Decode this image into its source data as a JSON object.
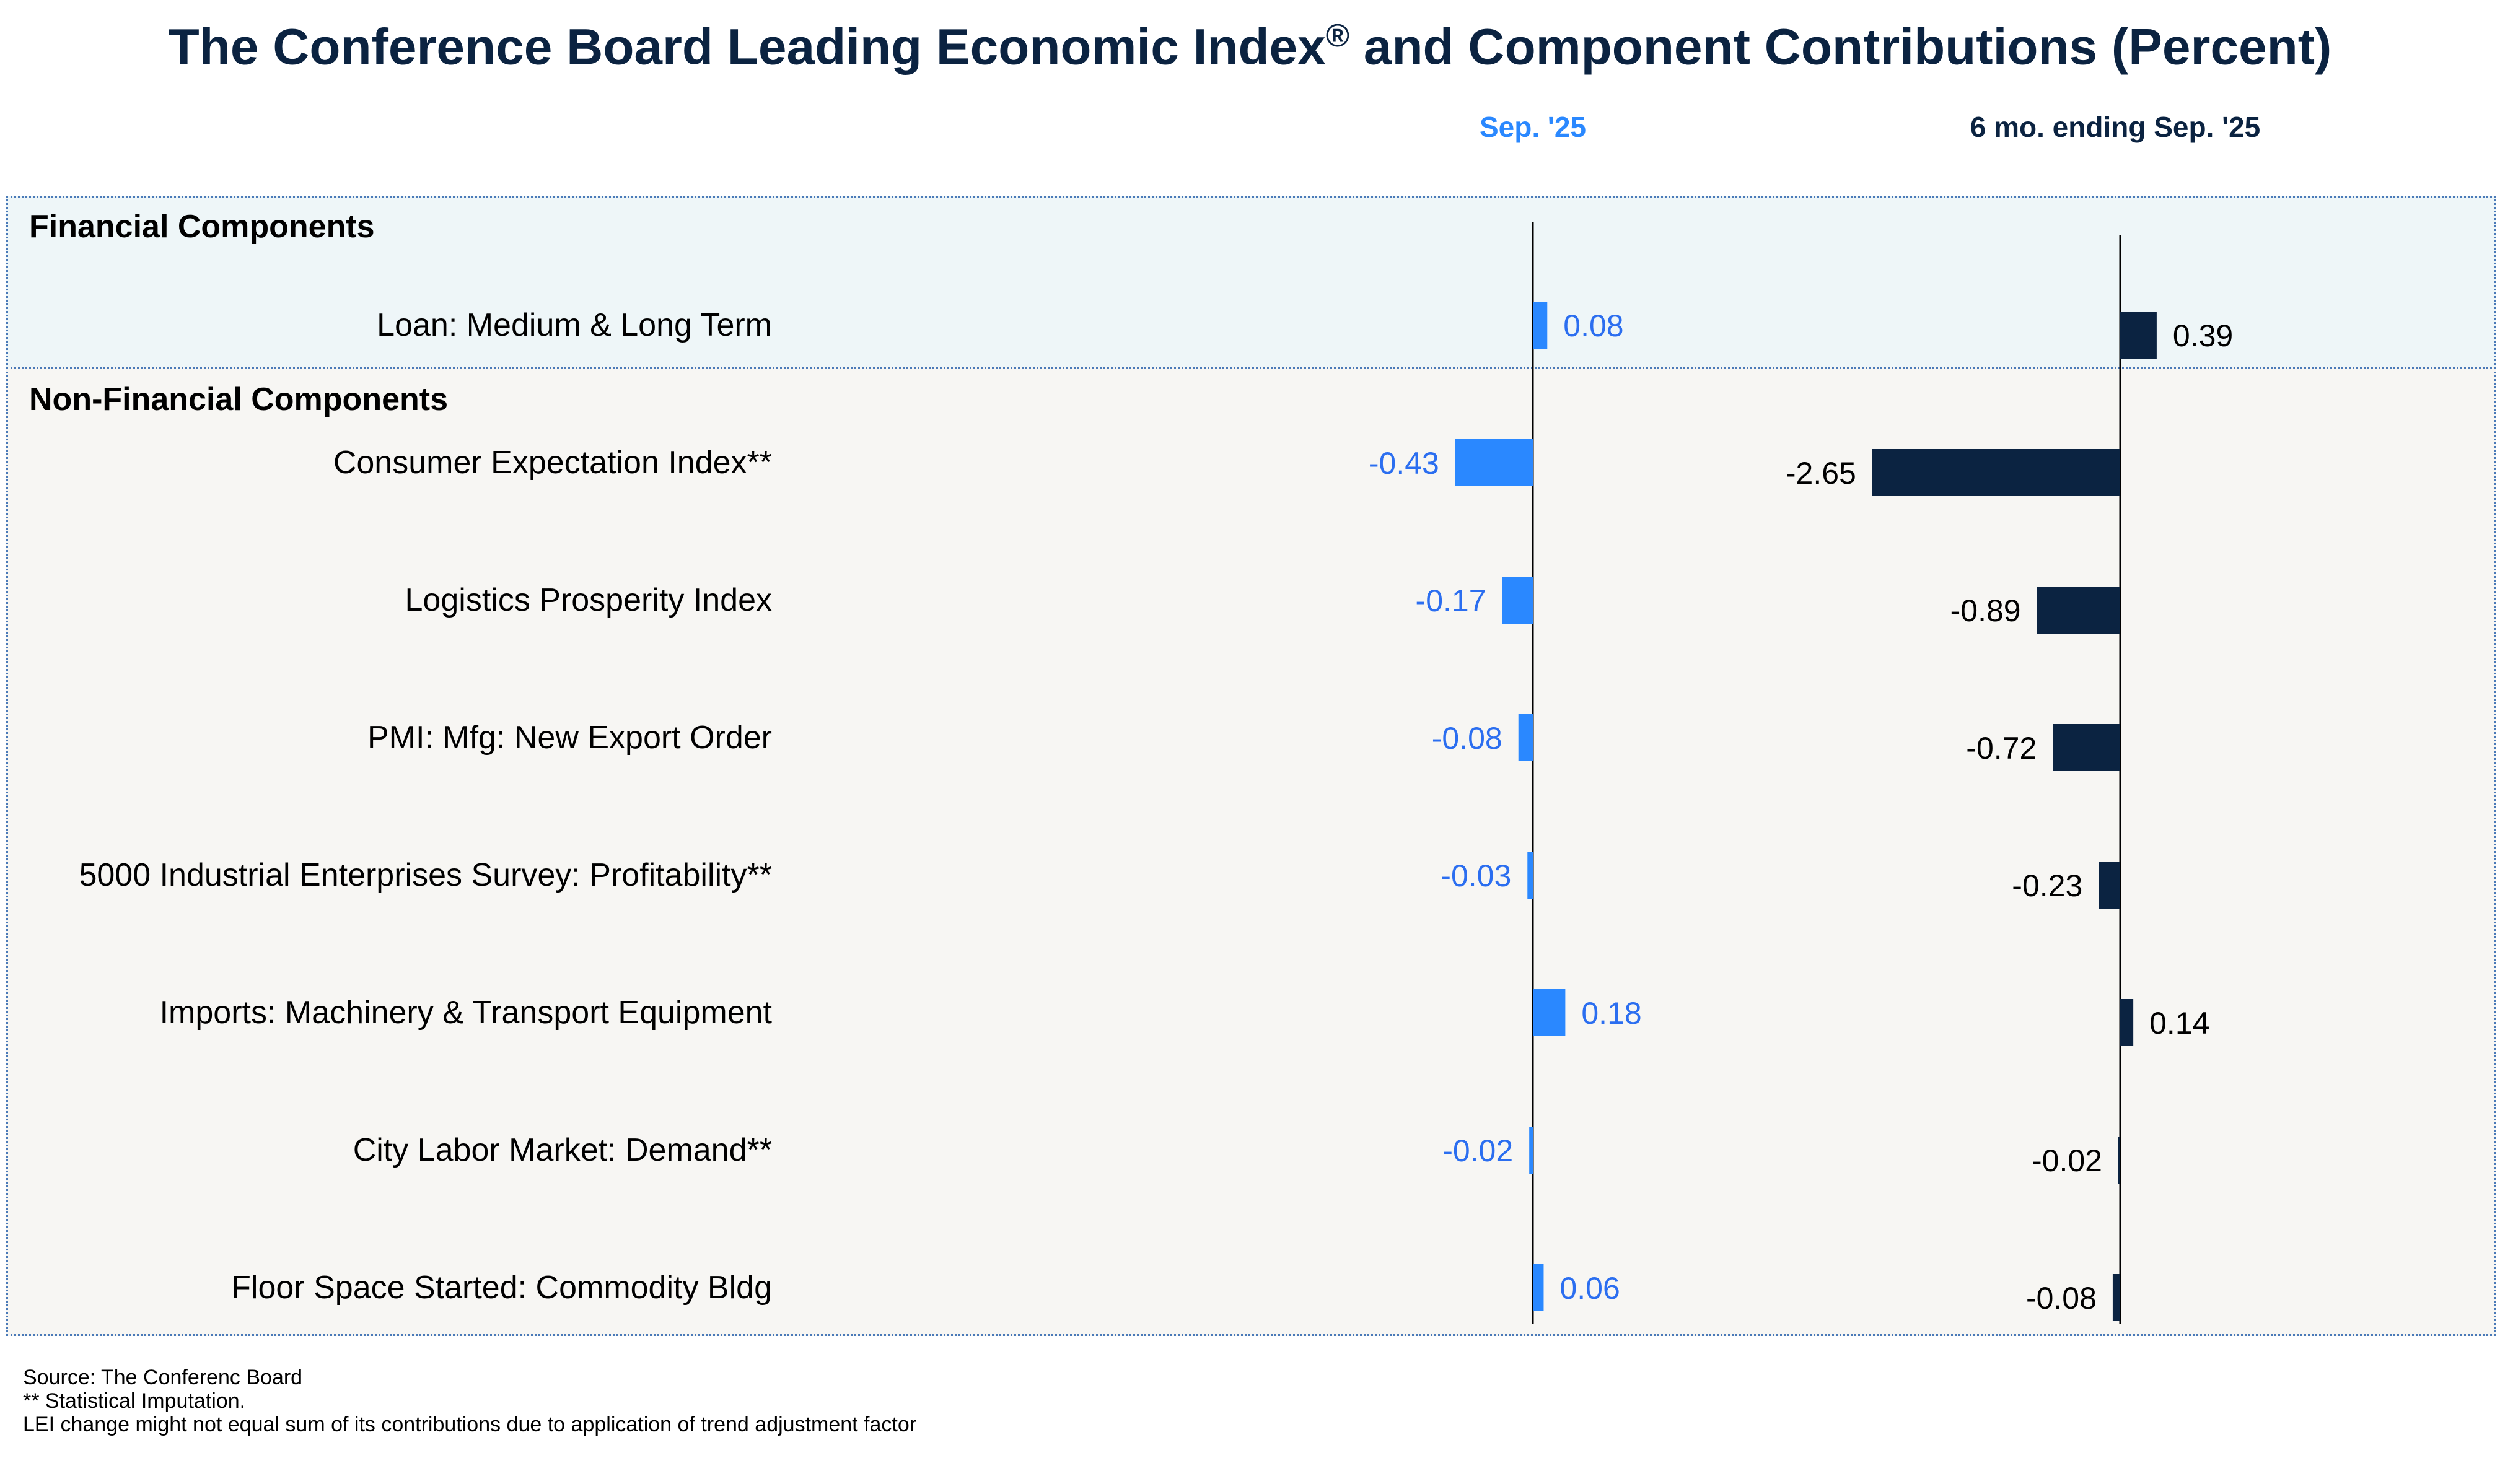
{
  "title": "The Conference Board Leading Economic Index",
  "title_mark": "®",
  "title_suffix": " and Component Contributions (Percent)",
  "columns": {
    "sep": "Sep. '25",
    "six_month": "6 mo. ending Sep. '25"
  },
  "sections": {
    "financial": "Financial Components",
    "non_financial": "Non-Financial Components"
  },
  "colors": {
    "sep_bar": "#2a88ff",
    "sep_label": "#2b6ef0",
    "six_bar": "#0b2341",
    "six_label": "#000000"
  },
  "chart_data": {
    "type": "bar",
    "orientation": "horizontal",
    "categories": [
      "Loan: Medium & Long Term",
      "Consumer Expectation Index**",
      "Logistics Prosperity Index",
      "PMI: Mfg: New Export Order",
      "5000 Industrial Enterprises Survey: Profitability**",
      "Imports: Machinery & Transport Equipment",
      "City Labor Market: Demand**",
      "Floor Space Started: Commodity Bldg"
    ],
    "groups": [
      "financial",
      "non_financial",
      "non_financial",
      "non_financial",
      "non_financial",
      "non_financial",
      "non_financial",
      "non_financial"
    ],
    "series": [
      {
        "name": "Sep. '25",
        "values": [
          0.08,
          -0.43,
          -0.17,
          -0.08,
          -0.03,
          0.18,
          -0.02,
          0.06
        ],
        "labels": [
          "0.08",
          "-0.43",
          "-0.17",
          "-0.08",
          "-0.03",
          "0.18",
          "-0.02",
          "0.06"
        ]
      },
      {
        "name": "6 mo. ending Sep. '25",
        "values": [
          0.39,
          -2.65,
          -0.89,
          -0.72,
          -0.23,
          0.14,
          -0.02,
          -0.08
        ],
        "labels": [
          "0.39",
          "-2.65",
          "-0.89",
          "-0.72",
          "-0.23",
          "0.14",
          "-0.02",
          "-0.08"
        ]
      }
    ],
    "title": "The Conference Board Leading Economic Index® and Component Contributions (Percent)"
  },
  "footnotes": [
    "Source: The Conferenc Board",
    "**  Statistical Imputation.",
    "LEI change might not equal sum of its contributions due to application of trend adjustment factor"
  ]
}
